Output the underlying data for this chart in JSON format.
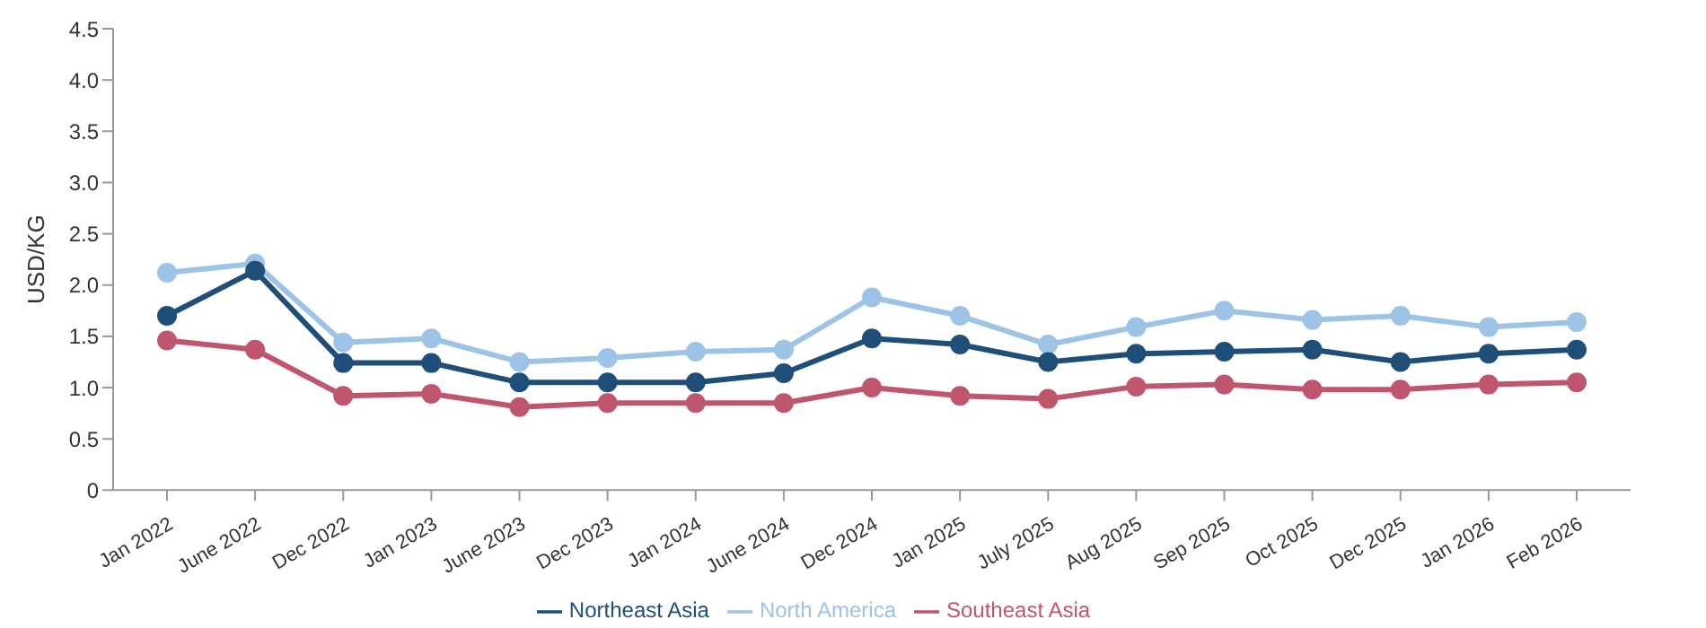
{
  "chart_data": {
    "type": "line",
    "ylabel": "USD/KG",
    "categories": [
      "Jan 2022",
      "June 2022",
      "Dec 2022",
      "Jan 2023",
      "June 2023",
      "Dec 2023",
      "Jan 2024",
      "June 2024",
      "Dec 2024",
      "Jan 2025",
      "July 2025",
      "Aug 2025",
      "Sep 2025",
      "Oct 2025",
      "Dec 2025",
      "Jan 2026",
      "Feb 2026"
    ],
    "series": [
      {
        "name": "Northeast Asia",
        "color": "#1f4e79",
        "values": [
          1.7,
          2.14,
          1.24,
          1.24,
          1.05,
          1.05,
          1.05,
          1.14,
          1.48,
          1.42,
          1.25,
          1.33,
          1.35,
          1.37,
          1.25,
          1.33,
          1.37
        ]
      },
      {
        "name": "North America",
        "color": "#9dc3e6",
        "values": [
          2.12,
          2.21,
          1.44,
          1.48,
          1.25,
          1.29,
          1.35,
          1.37,
          1.88,
          1.7,
          1.42,
          1.59,
          1.75,
          1.66,
          1.7,
          1.59,
          1.64
        ]
      },
      {
        "name": "Southeast Asia",
        "color": "#c0566e",
        "values": [
          1.46,
          1.37,
          0.92,
          0.94,
          0.81,
          0.85,
          0.85,
          0.85,
          1.0,
          0.92,
          0.89,
          1.01,
          1.03,
          0.98,
          0.98,
          1.03,
          1.05
        ]
      }
    ],
    "ylim": [
      0,
      4.5
    ],
    "yticks": [
      {
        "value": 0,
        "label": "0"
      },
      {
        "value": 0.5,
        "label": "0.5"
      },
      {
        "value": 1,
        "label": "1.0"
      },
      {
        "value": 1.5,
        "label": "1.5"
      },
      {
        "value": 2,
        "label": "2.0"
      },
      {
        "value": 2.5,
        "label": "2.5"
      },
      {
        "value": 3,
        "label": "3.0"
      },
      {
        "value": 3.5,
        "label": "3.5"
      },
      {
        "value": 4,
        "label": "4.0"
      },
      {
        "value": 4.5,
        "label": "4.5"
      }
    ],
    "grid": false,
    "legend": "bottom",
    "marker": "circle",
    "line_style": "solid"
  }
}
